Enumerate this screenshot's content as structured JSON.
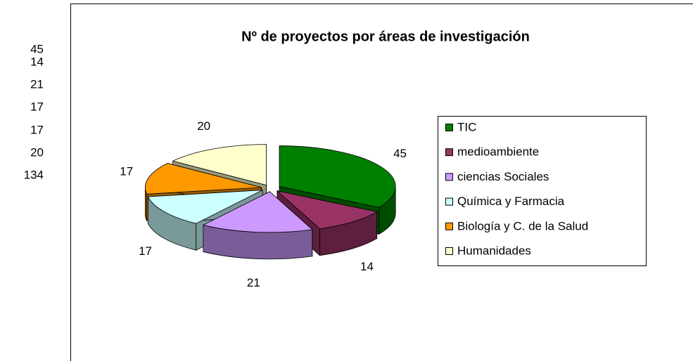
{
  "cells": [
    45,
    14,
    21,
    17,
    17,
    20,
    134
  ],
  "chart_data": {
    "type": "pie3d",
    "title": "Nº de proyectos por áreas de investigación",
    "categories": [
      "TIC",
      "medioambiente",
      "ciencias Sociales",
      "Química y Farmacia",
      "Biología y C. de la Salud",
      "Humanidades"
    ],
    "values": [
      45,
      14,
      21,
      17,
      17,
      20
    ],
    "colors": [
      "#008000",
      "#993366",
      "#cc99ff",
      "#ccffff",
      "#ff9900",
      "#ffffcc"
    ],
    "legend": "right"
  }
}
